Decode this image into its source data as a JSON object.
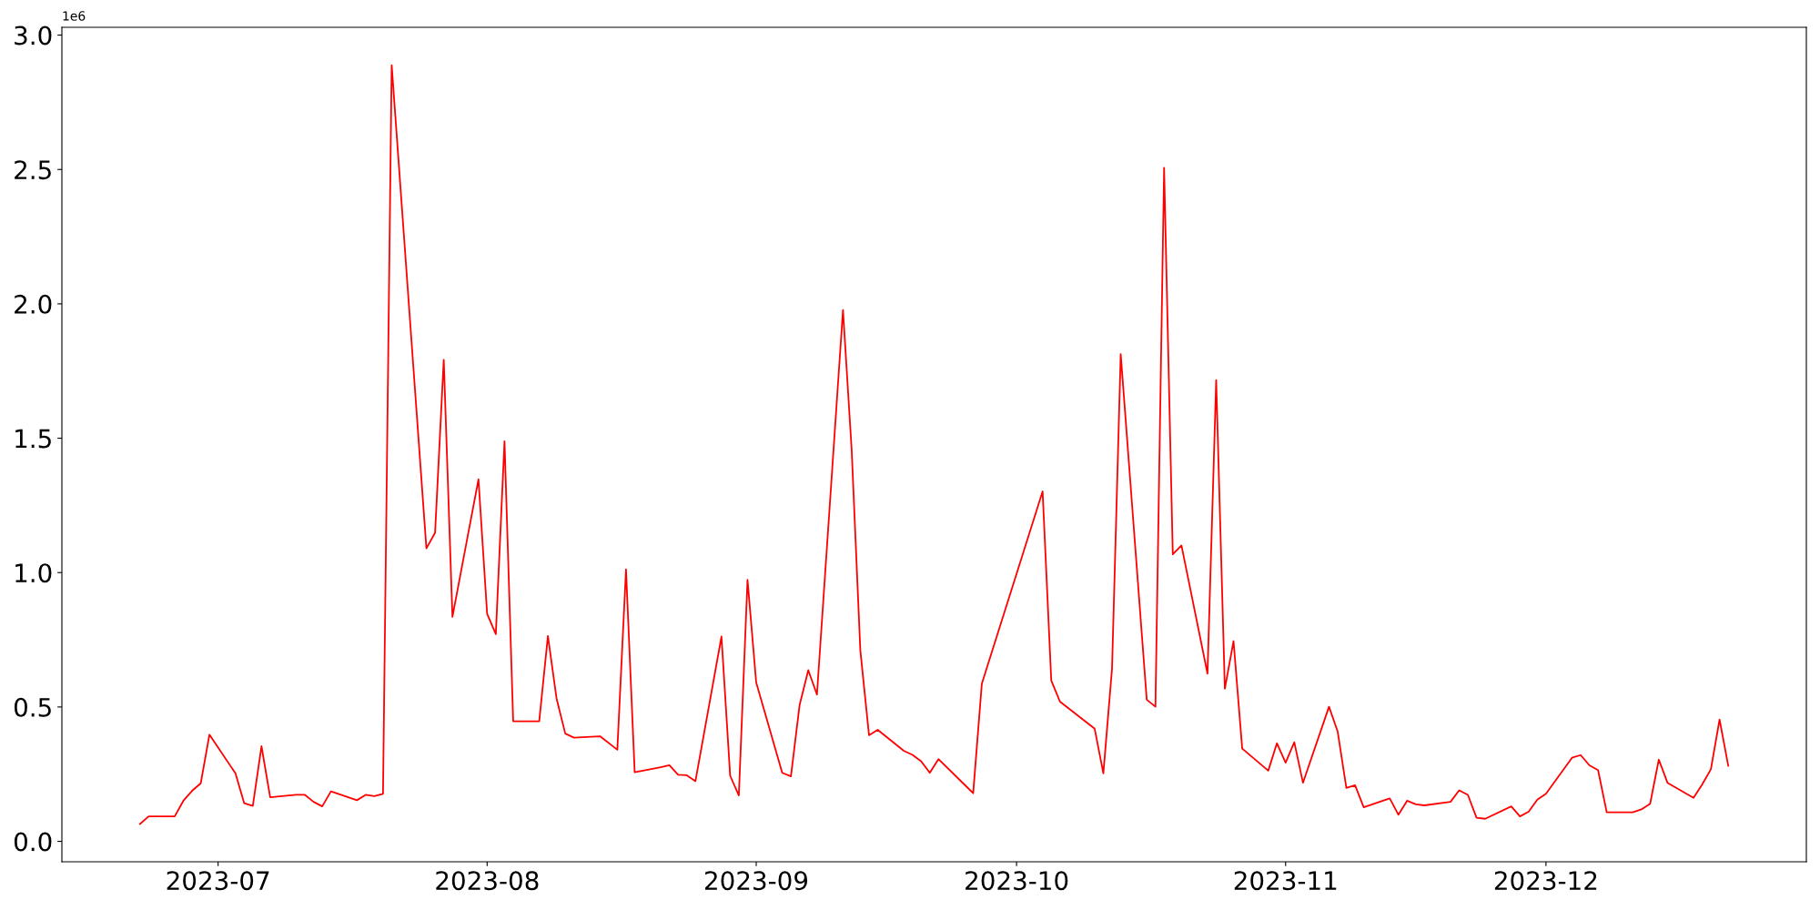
{
  "chart_data": {
    "type": "line",
    "x": [
      "2023-06-22",
      "2023-06-23",
      "2023-06-26",
      "2023-06-27",
      "2023-06-28",
      "2023-06-29",
      "2023-06-30",
      "2023-07-03",
      "2023-07-04",
      "2023-07-05",
      "2023-07-06",
      "2023-07-07",
      "2023-07-10",
      "2023-07-11",
      "2023-07-12",
      "2023-07-13",
      "2023-07-14",
      "2023-07-17",
      "2023-07-18",
      "2023-07-19",
      "2023-07-20",
      "2023-07-21",
      "2023-07-25",
      "2023-07-26",
      "2023-07-27",
      "2023-07-28",
      "2023-07-31",
      "2023-08-01",
      "2023-08-02",
      "2023-08-03",
      "2023-08-04",
      "2023-08-07",
      "2023-08-08",
      "2023-08-09",
      "2023-08-10",
      "2023-08-11",
      "2023-08-14",
      "2023-08-16",
      "2023-08-17",
      "2023-08-18",
      "2023-08-21",
      "2023-08-22",
      "2023-08-23",
      "2023-08-24",
      "2023-08-25",
      "2023-08-28",
      "2023-08-29",
      "2023-08-30",
      "2023-08-31",
      "2023-09-01",
      "2023-09-04",
      "2023-09-05",
      "2023-09-06",
      "2023-09-07",
      "2023-09-08",
      "2023-09-11",
      "2023-09-12",
      "2023-09-13",
      "2023-09-14",
      "2023-09-15",
      "2023-09-18",
      "2023-09-19",
      "2023-09-20",
      "2023-09-21",
      "2023-09-22",
      "2023-09-25",
      "2023-09-26",
      "2023-09-27",
      "2023-10-04",
      "2023-10-05",
      "2023-10-06",
      "2023-10-10",
      "2023-10-11",
      "2023-10-12",
      "2023-10-13",
      "2023-10-16",
      "2023-10-17",
      "2023-10-18",
      "2023-10-19",
      "2023-10-20",
      "2023-10-23",
      "2023-10-24",
      "2023-10-25",
      "2023-10-26",
      "2023-10-27",
      "2023-10-30",
      "2023-10-31",
      "2023-11-01",
      "2023-11-02",
      "2023-11-03",
      "2023-11-06",
      "2023-11-07",
      "2023-11-08",
      "2023-11-09",
      "2023-11-10",
      "2023-11-13",
      "2023-11-14",
      "2023-11-15",
      "2023-11-16",
      "2023-11-17",
      "2023-11-20",
      "2023-11-21",
      "2023-11-22",
      "2023-11-23",
      "2023-11-24",
      "2023-11-27",
      "2023-11-28",
      "2023-11-29",
      "2023-11-30",
      "2023-12-01",
      "2023-12-04",
      "2023-12-05",
      "2023-12-06",
      "2023-12-07",
      "2023-12-08",
      "2023-12-11",
      "2023-12-12",
      "2023-12-13",
      "2023-12-14",
      "2023-12-15",
      "2023-12-18",
      "2023-12-19",
      "2023-12-20",
      "2023-12-21",
      "2023-12-22"
    ],
    "series": [
      {
        "color": "#ff0000",
        "values": [
          0.065,
          0.093,
          0.093,
          0.151,
          0.188,
          0.216,
          0.397,
          0.253,
          0.142,
          0.132,
          0.354,
          0.164,
          0.173,
          0.173,
          0.147,
          0.13,
          0.186,
          0.153,
          0.173,
          0.168,
          0.177,
          2.888,
          1.09,
          1.148,
          1.792,
          0.835,
          1.347,
          0.846,
          0.771,
          1.489,
          0.447,
          0.447,
          0.764,
          0.531,
          0.401,
          0.386,
          0.391,
          0.341,
          1.012,
          0.257,
          0.276,
          0.283,
          0.248,
          0.246,
          0.224,
          0.762,
          0.244,
          0.171,
          0.973,
          0.591,
          0.255,
          0.242,
          0.507,
          0.637,
          0.546,
          1.977,
          1.457,
          0.71,
          0.395,
          0.415,
          0.337,
          0.322,
          0.298,
          0.255,
          0.306,
          0.211,
          0.179,
          0.587,
          1.302,
          0.598,
          0.52,
          0.419,
          0.253,
          0.643,
          1.813,
          0.527,
          0.501,
          2.506,
          1.068,
          1.101,
          0.624,
          1.716,
          0.568,
          0.745,
          0.345,
          0.263,
          0.365,
          0.293,
          0.369,
          0.218,
          0.501,
          0.408,
          0.199,
          0.209,
          0.127,
          0.16,
          0.099,
          0.151,
          0.138,
          0.134,
          0.147,
          0.19,
          0.173,
          0.088,
          0.084,
          0.13,
          0.093,
          0.11,
          0.155,
          0.177,
          0.311,
          0.321,
          0.283,
          0.265,
          0.108,
          0.108,
          0.119,
          0.14,
          0.304,
          0.218,
          0.162,
          0.212,
          0.268,
          0.453,
          0.281
        ]
      }
    ],
    "xlim": [
      "2023-06-13",
      "2023-12-31"
    ],
    "xticks": [
      {
        "value": "2023-07-01",
        "label": "2023-07"
      },
      {
        "value": "2023-08-01",
        "label": "2023-08"
      },
      {
        "value": "2023-09-01",
        "label": "2023-09"
      },
      {
        "value": "2023-10-01",
        "label": "2023-10"
      },
      {
        "value": "2023-11-01",
        "label": "2023-11"
      },
      {
        "value": "2023-12-01",
        "label": "2023-12"
      }
    ],
    "ylim": [
      -0.076,
      3.029
    ],
    "yticks": [
      {
        "value": 0,
        "label": "0.0"
      },
      {
        "value": 0.5,
        "label": "0.5"
      },
      {
        "value": 1,
        "label": "1.0"
      },
      {
        "value": 1.5,
        "label": "1.5"
      },
      {
        "value": 2,
        "label": "2.0"
      },
      {
        "value": 2.5,
        "label": "2.5"
      },
      {
        "value": 3,
        "label": "3.0"
      }
    ],
    "annotations": [
      "1e6"
    ],
    "grid": false,
    "marker": "none",
    "line_style": "solid"
  }
}
